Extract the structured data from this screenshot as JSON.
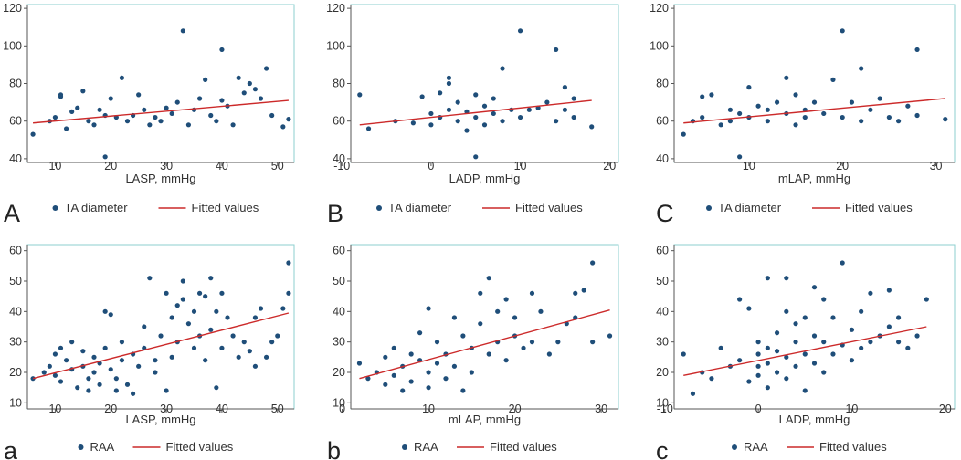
{
  "colors": {
    "point": "#1f4e79",
    "line": "#cc2a2a",
    "frame": "#8ecfcf",
    "text": "#333333"
  },
  "chart_data": [
    {
      "panel": "A",
      "type": "scatter",
      "xlabel": "LASP, mmHg",
      "ylabel": "",
      "xlim": [
        5,
        53
      ],
      "ylim": [
        38,
        122
      ],
      "xticks": [
        10,
        20,
        30,
        40,
        50
      ],
      "yticks": [
        40,
        60,
        80,
        100,
        120
      ],
      "legend": {
        "points": "TA diameter",
        "line": "Fitted values"
      },
      "fit": {
        "x": [
          6,
          52
        ],
        "y": [
          59,
          71
        ]
      },
      "points": [
        [
          6,
          53
        ],
        [
          9,
          60
        ],
        [
          10,
          62
        ],
        [
          11,
          73
        ],
        [
          11,
          74
        ],
        [
          12,
          56
        ],
        [
          13,
          65
        ],
        [
          14,
          67
        ],
        [
          15,
          76
        ],
        [
          16,
          60
        ],
        [
          17,
          58
        ],
        [
          18,
          66
        ],
        [
          19,
          41
        ],
        [
          19,
          63
        ],
        [
          20,
          72
        ],
        [
          21,
          62
        ],
        [
          22,
          83
        ],
        [
          23,
          60
        ],
        [
          24,
          63
        ],
        [
          25,
          74
        ],
        [
          26,
          66
        ],
        [
          27,
          58
        ],
        [
          28,
          62
        ],
        [
          29,
          60
        ],
        [
          30,
          67
        ],
        [
          31,
          64
        ],
        [
          32,
          70
        ],
        [
          33,
          108
        ],
        [
          34,
          58
        ],
        [
          35,
          66
        ],
        [
          36,
          72
        ],
        [
          37,
          82
        ],
        [
          38,
          63
        ],
        [
          39,
          60
        ],
        [
          40,
          71
        ],
        [
          40,
          98
        ],
        [
          41,
          68
        ],
        [
          42,
          58
        ],
        [
          43,
          83
        ],
        [
          44,
          75
        ],
        [
          45,
          80
        ],
        [
          46,
          77
        ],
        [
          47,
          72
        ],
        [
          48,
          88
        ],
        [
          49,
          63
        ],
        [
          51,
          57
        ],
        [
          52,
          61
        ]
      ]
    },
    {
      "panel": "B",
      "type": "scatter",
      "xlabel": "LADP, mmHg",
      "ylabel": "",
      "xlim": [
        -9,
        21
      ],
      "ylim": [
        38,
        122
      ],
      "xticks": [
        -10,
        0,
        10,
        20
      ],
      "yticks": [
        40,
        60,
        80,
        100,
        120
      ],
      "legend": {
        "points": "TA diameter",
        "line": "Fitted values"
      },
      "fit": {
        "x": [
          -8,
          18
        ],
        "y": [
          58,
          71
        ]
      },
      "points": [
        [
          -8,
          74
        ],
        [
          -7,
          56
        ],
        [
          -4,
          60
        ],
        [
          -2,
          59
        ],
        [
          -1,
          73
        ],
        [
          0,
          64
        ],
        [
          0,
          58
        ],
        [
          1,
          75
        ],
        [
          1,
          62
        ],
        [
          2,
          66
        ],
        [
          2,
          80
        ],
        [
          2,
          83
        ],
        [
          3,
          60
        ],
        [
          3,
          70
        ],
        [
          4,
          65
        ],
        [
          4,
          55
        ],
        [
          5,
          74
        ],
        [
          5,
          62
        ],
        [
          5,
          41
        ],
        [
          6,
          68
        ],
        [
          6,
          58
        ],
        [
          7,
          72
        ],
        [
          7,
          64
        ],
        [
          8,
          88
        ],
        [
          8,
          60
        ],
        [
          9,
          66
        ],
        [
          10,
          108
        ],
        [
          10,
          62
        ],
        [
          11,
          66
        ],
        [
          12,
          67
        ],
        [
          13,
          70
        ],
        [
          14,
          98
        ],
        [
          14,
          60
        ],
        [
          15,
          78
        ],
        [
          15,
          66
        ],
        [
          16,
          72
        ],
        [
          16,
          62
        ],
        [
          18,
          57
        ]
      ]
    },
    {
      "panel": "C",
      "type": "scatter",
      "xlabel": "mLAP, mmHg",
      "ylabel": "",
      "xlim": [
        2,
        32
      ],
      "ylim": [
        38,
        122
      ],
      "xticks": [
        10,
        20,
        30
      ],
      "yticks": [
        40,
        60,
        80,
        100,
        120
      ],
      "legend": {
        "points": "TA diameter",
        "line": "Fitted values"
      },
      "fit": {
        "x": [
          3,
          31
        ],
        "y": [
          59,
          72
        ]
      },
      "points": [
        [
          3,
          53
        ],
        [
          4,
          60
        ],
        [
          5,
          62
        ],
        [
          5,
          73
        ],
        [
          6,
          74
        ],
        [
          7,
          58
        ],
        [
          8,
          66
        ],
        [
          8,
          60
        ],
        [
          9,
          41
        ],
        [
          9,
          64
        ],
        [
          10,
          78
        ],
        [
          10,
          62
        ],
        [
          11,
          68
        ],
        [
          12,
          60
        ],
        [
          12,
          66
        ],
        [
          13,
          70
        ],
        [
          14,
          83
        ],
        [
          14,
          64
        ],
        [
          15,
          58
        ],
        [
          15,
          74
        ],
        [
          16,
          62
        ],
        [
          16,
          66
        ],
        [
          17,
          70
        ],
        [
          18,
          64
        ],
        [
          19,
          82
        ],
        [
          20,
          108
        ],
        [
          20,
          62
        ],
        [
          21,
          70
        ],
        [
          22,
          88
        ],
        [
          22,
          60
        ],
        [
          23,
          66
        ],
        [
          24,
          72
        ],
        [
          25,
          62
        ],
        [
          26,
          60
        ],
        [
          27,
          68
        ],
        [
          28,
          98
        ],
        [
          28,
          63
        ],
        [
          31,
          61
        ]
      ]
    },
    {
      "panel": "a",
      "type": "scatter",
      "xlabel": "LASP, mmHg",
      "ylabel": "",
      "xlim": [
        5,
        53
      ],
      "ylim": [
        8,
        62
      ],
      "xticks": [
        10,
        20,
        30,
        40,
        50
      ],
      "yticks": [
        10,
        20,
        30,
        40,
        50,
        60
      ],
      "legend": {
        "points": "RAA",
        "line": "Fitted values"
      },
      "fit": {
        "x": [
          6,
          52
        ],
        "y": [
          18,
          39.5
        ]
      },
      "points": [
        [
          6,
          18
        ],
        [
          8,
          20
        ],
        [
          9,
          22
        ],
        [
          10,
          19
        ],
        [
          10,
          26
        ],
        [
          11,
          28
        ],
        [
          11,
          17
        ],
        [
          12,
          24
        ],
        [
          13,
          21
        ],
        [
          13,
          30
        ],
        [
          14,
          15
        ],
        [
          15,
          22
        ],
        [
          15,
          27
        ],
        [
          16,
          18
        ],
        [
          16,
          14
        ],
        [
          17,
          25
        ],
        [
          17,
          20
        ],
        [
          18,
          23
        ],
        [
          18,
          16
        ],
        [
          19,
          40
        ],
        [
          19,
          28
        ],
        [
          20,
          39
        ],
        [
          20,
          21
        ],
        [
          21,
          18
        ],
        [
          21,
          14
        ],
        [
          22,
          24
        ],
        [
          22,
          30
        ],
        [
          23,
          16
        ],
        [
          24,
          26
        ],
        [
          24,
          13
        ],
        [
          25,
          22
        ],
        [
          26,
          35
        ],
        [
          26,
          28
        ],
        [
          27,
          51
        ],
        [
          28,
          24
        ],
        [
          28,
          20
        ],
        [
          29,
          32
        ],
        [
          30,
          14
        ],
        [
          30,
          46
        ],
        [
          31,
          25
        ],
        [
          31,
          38
        ],
        [
          32,
          42
        ],
        [
          32,
          30
        ],
        [
          33,
          44
        ],
        [
          33,
          50
        ],
        [
          34,
          36
        ],
        [
          35,
          28
        ],
        [
          35,
          40
        ],
        [
          36,
          46
        ],
        [
          36,
          32
        ],
        [
          37,
          24
        ],
        [
          37,
          45
        ],
        [
          38,
          51
        ],
        [
          38,
          34
        ],
        [
          39,
          15
        ],
        [
          39,
          40
        ],
        [
          40,
          46
        ],
        [
          40,
          28
        ],
        [
          41,
          38
        ],
        [
          42,
          32
        ],
        [
          43,
          25
        ],
        [
          44,
          30
        ],
        [
          45,
          27
        ],
        [
          46,
          38
        ],
        [
          46,
          22
        ],
        [
          47,
          41
        ],
        [
          48,
          25
        ],
        [
          49,
          30
        ],
        [
          50,
          32
        ],
        [
          51,
          41
        ],
        [
          52,
          56
        ],
        [
          52,
          46
        ]
      ]
    },
    {
      "panel": "b",
      "type": "scatter",
      "xlabel": "mLAP, mmHg",
      "ylabel": "",
      "xlim": [
        1,
        32
      ],
      "ylim": [
        8,
        62
      ],
      "xticks": [
        0,
        10,
        20,
        30
      ],
      "yticks": [
        10,
        20,
        30,
        40,
        50,
        60
      ],
      "legend": {
        "points": "RAA",
        "line": "Fitted values"
      },
      "fit": {
        "x": [
          2,
          31
        ],
        "y": [
          18,
          40.5
        ]
      },
      "points": [
        [
          2,
          23
        ],
        [
          3,
          18
        ],
        [
          4,
          20
        ],
        [
          5,
          25
        ],
        [
          5,
          16
        ],
        [
          6,
          28
        ],
        [
          6,
          19
        ],
        [
          7,
          22
        ],
        [
          7,
          14
        ],
        [
          8,
          26
        ],
        [
          8,
          17
        ],
        [
          9,
          24
        ],
        [
          9,
          33
        ],
        [
          10,
          41
        ],
        [
          10,
          20
        ],
        [
          10,
          15
        ],
        [
          11,
          30
        ],
        [
          11,
          23
        ],
        [
          12,
          26
        ],
        [
          12,
          18
        ],
        [
          13,
          38
        ],
        [
          13,
          22
        ],
        [
          14,
          32
        ],
        [
          14,
          14
        ],
        [
          15,
          28
        ],
        [
          15,
          20
        ],
        [
          16,
          36
        ],
        [
          16,
          46
        ],
        [
          17,
          51
        ],
        [
          17,
          26
        ],
        [
          18,
          30
        ],
        [
          18,
          40
        ],
        [
          19,
          44
        ],
        [
          19,
          24
        ],
        [
          20,
          32
        ],
        [
          20,
          38
        ],
        [
          21,
          28
        ],
        [
          22,
          46
        ],
        [
          22,
          30
        ],
        [
          23,
          40
        ],
        [
          24,
          26
        ],
        [
          25,
          30
        ],
        [
          26,
          36
        ],
        [
          27,
          38
        ],
        [
          27,
          46
        ],
        [
          28,
          47
        ],
        [
          29,
          56
        ],
        [
          29,
          30
        ],
        [
          31,
          32
        ]
      ]
    },
    {
      "panel": "c",
      "type": "scatter",
      "xlabel": "LADP, mmHg",
      "ylabel": "",
      "xlim": [
        -9,
        21
      ],
      "ylim": [
        8,
        62
      ],
      "xticks": [
        -10,
        0,
        10,
        20
      ],
      "yticks": [
        10,
        20,
        30,
        40,
        50,
        60
      ],
      "legend": {
        "points": "RAA",
        "line": "Fitted values"
      },
      "fit": {
        "x": [
          -8,
          18
        ],
        "y": [
          19,
          35
        ]
      },
      "points": [
        [
          -8,
          26
        ],
        [
          -7,
          13
        ],
        [
          -6,
          20
        ],
        [
          -5,
          18
        ],
        [
          -4,
          28
        ],
        [
          -3,
          22
        ],
        [
          -2,
          44
        ],
        [
          -2,
          24
        ],
        [
          -1,
          41
        ],
        [
          -1,
          17
        ],
        [
          0,
          30
        ],
        [
          0,
          26
        ],
        [
          0,
          22
        ],
        [
          0,
          19
        ],
        [
          1,
          51
        ],
        [
          1,
          28
        ],
        [
          1,
          23
        ],
        [
          1,
          15
        ],
        [
          2,
          33
        ],
        [
          2,
          27
        ],
        [
          2,
          20
        ],
        [
          3,
          51
        ],
        [
          3,
          40
        ],
        [
          3,
          25
        ],
        [
          3,
          18
        ],
        [
          4,
          36
        ],
        [
          4,
          30
        ],
        [
          4,
          22
        ],
        [
          5,
          38
        ],
        [
          5,
          26
        ],
        [
          5,
          14
        ],
        [
          6,
          48
        ],
        [
          6,
          32
        ],
        [
          6,
          23
        ],
        [
          7,
          44
        ],
        [
          7,
          30
        ],
        [
          7,
          20
        ],
        [
          8,
          38
        ],
        [
          8,
          26
        ],
        [
          9,
          56
        ],
        [
          9,
          29
        ],
        [
          10,
          34
        ],
        [
          10,
          24
        ],
        [
          11,
          40
        ],
        [
          11,
          28
        ],
        [
          12,
          46
        ],
        [
          12,
          30
        ],
        [
          13,
          32
        ],
        [
          14,
          47
        ],
        [
          14,
          35
        ],
        [
          15,
          30
        ],
        [
          15,
          38
        ],
        [
          16,
          28
        ],
        [
          17,
          32
        ],
        [
          18,
          44
        ]
      ]
    }
  ]
}
